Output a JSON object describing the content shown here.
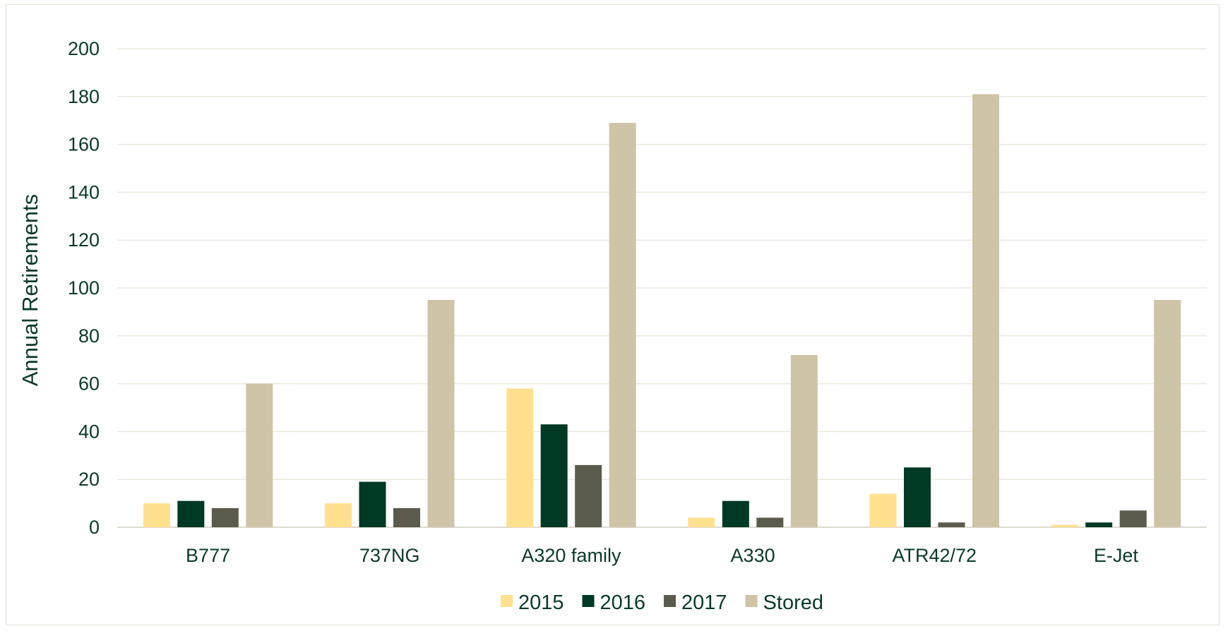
{
  "chart_data": {
    "type": "bar",
    "title": "",
    "xlabel": "",
    "ylabel": "Annual Retirements",
    "ylim": [
      0,
      200
    ],
    "yticks": [
      0,
      20,
      40,
      60,
      80,
      100,
      120,
      140,
      160,
      180,
      200
    ],
    "grid": true,
    "legend_position": "bottom",
    "categories": [
      "B777",
      "737NG",
      "A320 family",
      "A330",
      "ATR42/72",
      "E-Jet"
    ],
    "series": [
      {
        "name": "2015",
        "color": "#ffe08f",
        "values": [
          10,
          10,
          58,
          4,
          14,
          1
        ]
      },
      {
        "name": "2016",
        "color": "#003924",
        "values": [
          11,
          19,
          43,
          11,
          25,
          2
        ]
      },
      {
        "name": "2017",
        "color": "#5c5a4c",
        "values": [
          8,
          8,
          26,
          4,
          2,
          7
        ]
      },
      {
        "name": "Stored",
        "color": "#cfc4a8",
        "values": [
          60,
          95,
          169,
          72,
          181,
          95
        ]
      }
    ]
  }
}
